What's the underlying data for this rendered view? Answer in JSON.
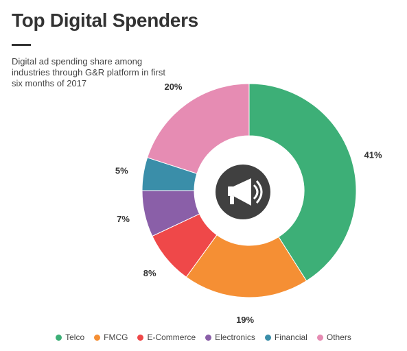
{
  "header": {
    "title": "Top Digital Spenders",
    "subtitle": "Digital ad spending share among industries through G&R platform in first six months of 2017"
  },
  "center_icon": "megaphone-icon",
  "chart_data": {
    "type": "pie",
    "title": "Top Digital Spenders",
    "subtitle": "Digital ad spending share among industries through G&R platform in first six months of 2017",
    "categories": [
      "Telco",
      "FMCG",
      "E-Commerce",
      "Electronics",
      "Financial",
      "Others"
    ],
    "values": [
      41,
      19,
      8,
      7,
      5,
      20
    ],
    "labels": [
      "41%",
      "19%",
      "8%",
      "7%",
      "5%",
      "20%"
    ],
    "colors": [
      "#3daf77",
      "#f58f34",
      "#ef4849",
      "#8a5fa8",
      "#3a8ea9",
      "#e68cb3"
    ],
    "legend_position": "bottom-center",
    "donut": true
  }
}
